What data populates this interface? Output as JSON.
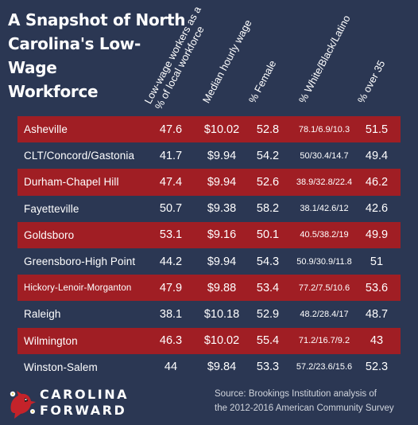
{
  "title_lines": [
    "A Snapshot of North",
    "Carolina's Low-Wage",
    "Workforce"
  ],
  "colors": {
    "background": "#2b3753",
    "highlight_row": "#a01e24",
    "text": "#ffffff"
  },
  "chart_data": {
    "type": "table",
    "title": "A Snapshot of North Carolina's Low-Wage Workforce",
    "columns": [
      [
        "Low-wage workers as a",
        "% of local workforce"
      ],
      [
        "Median hourly wage"
      ],
      [
        "% Female"
      ],
      [
        "% White/Black/Latino"
      ],
      [
        "% over 35"
      ]
    ],
    "rows": [
      {
        "city": "Asheville",
        "low_wage": "47.6",
        "wage": "$10.02",
        "female": "52.8",
        "wbl": "78.1/6.9/10.3",
        "over35": "51.5",
        "highlight": true
      },
      {
        "city": "CLT/Concord/Gastonia",
        "low_wage": "41.7",
        "wage": "$9.94",
        "female": "54.2",
        "wbl": "50/30.4/14.7",
        "over35": "49.4",
        "highlight": false
      },
      {
        "city": "Durham-Chapel Hill",
        "low_wage": "47.4",
        "wage": "$9.94",
        "female": "52.6",
        "wbl": "38.9/32.8/22.4",
        "over35": "46.2",
        "highlight": true
      },
      {
        "city": "Fayetteville",
        "low_wage": "50.7",
        "wage": "$9.38",
        "female": "58.2",
        "wbl": "38.1/42.6/12",
        "over35": "42.6",
        "highlight": false
      },
      {
        "city": "Goldsboro",
        "low_wage": "53.1",
        "wage": "$9.16",
        "female": "50.1",
        "wbl": "40.5/38.2/19",
        "over35": "49.9",
        "highlight": true
      },
      {
        "city": "Greensboro-High Point",
        "low_wage": "44.2",
        "wage": "$9.94",
        "female": "54.3",
        "wbl": "50.9/30.9/11.8",
        "over35": "51",
        "highlight": false
      },
      {
        "city": "Hickory-Lenoir-Morganton",
        "low_wage": "47.9",
        "wage": "$9.88",
        "female": "53.4",
        "wbl": "77.2/7.5/10.6",
        "over35": "53.6",
        "highlight": true
      },
      {
        "city": "Raleigh",
        "low_wage": "38.1",
        "wage": "$10.18",
        "female": "52.9",
        "wbl": "48.2/28.4/17",
        "over35": "48.7",
        "highlight": false
      },
      {
        "city": "Wilmington",
        "low_wage": "46.3",
        "wage": "$10.02",
        "female": "55.4",
        "wbl": "71.2/16.7/9.2",
        "over35": "43",
        "highlight": true
      },
      {
        "city": "Winston-Salem",
        "low_wage": "44",
        "wage": "$9.84",
        "female": "53.3",
        "wbl": "57.2/23.6/15.6",
        "over35": "52.3",
        "highlight": false
      }
    ]
  },
  "logo": {
    "line1": "CAROLINA",
    "line2": "FORWARD",
    "icon": "cardinal-bird-icon"
  },
  "source_lines": [
    "Source: Brookings Institution analysis of",
    "the 2012-2016 American Community Survey"
  ]
}
